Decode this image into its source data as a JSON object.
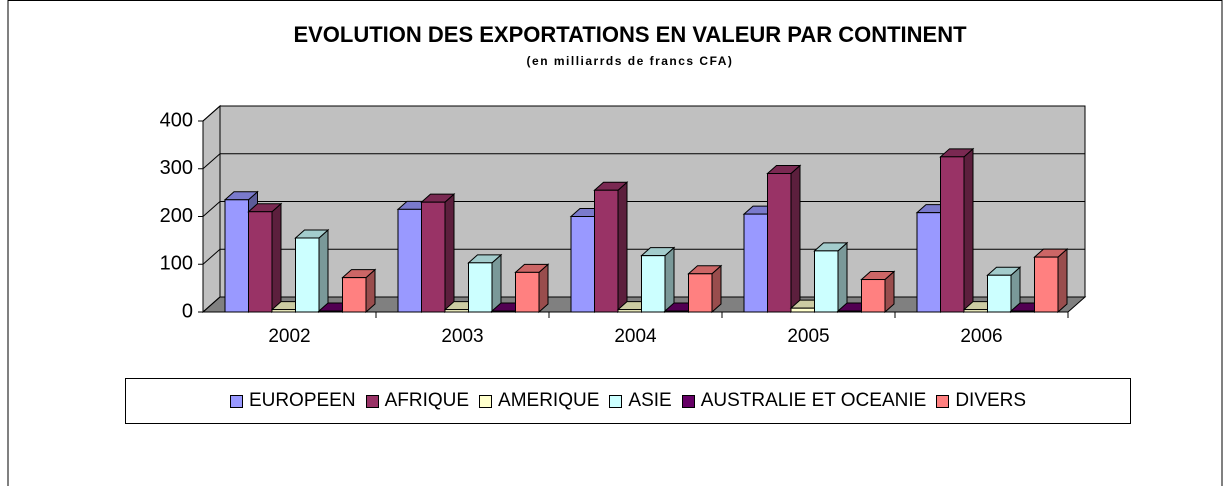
{
  "chart_data": {
    "type": "bar3d",
    "title": "EVOLUTION DES EXPORTATIONS EN VALEUR PAR CONTINENT",
    "subtitle": "(en milliarrds de francs CFA)",
    "categories": [
      "2002",
      "2003",
      "2004",
      "2005",
      "2006"
    ],
    "series": [
      {
        "name": "EUROPEEN",
        "color": "#9999ff",
        "values": [
          235,
          215,
          200,
          205,
          208
        ]
      },
      {
        "name": "AFRIQUE",
        "color": "#993366",
        "values": [
          210,
          230,
          255,
          290,
          325
        ]
      },
      {
        "name": "AMERIQUE",
        "color": "#ffffcc",
        "values": [
          5,
          5,
          5,
          8,
          5
        ]
      },
      {
        "name": "ASIE",
        "color": "#ccffff",
        "values": [
          155,
          103,
          118,
          128,
          77
        ]
      },
      {
        "name": "AUSTRALIE ET OCEANIE",
        "color": "#660066",
        "values": [
          2,
          2,
          2,
          2,
          2
        ]
      },
      {
        "name": "DIVERS",
        "color": "#ff8080",
        "values": [
          72,
          83,
          80,
          68,
          115
        ]
      }
    ],
    "ylim": [
      0,
      400
    ],
    "yticks": [
      0,
      100,
      200,
      300,
      400
    ],
    "grid": true,
    "legend": "bottom"
  }
}
